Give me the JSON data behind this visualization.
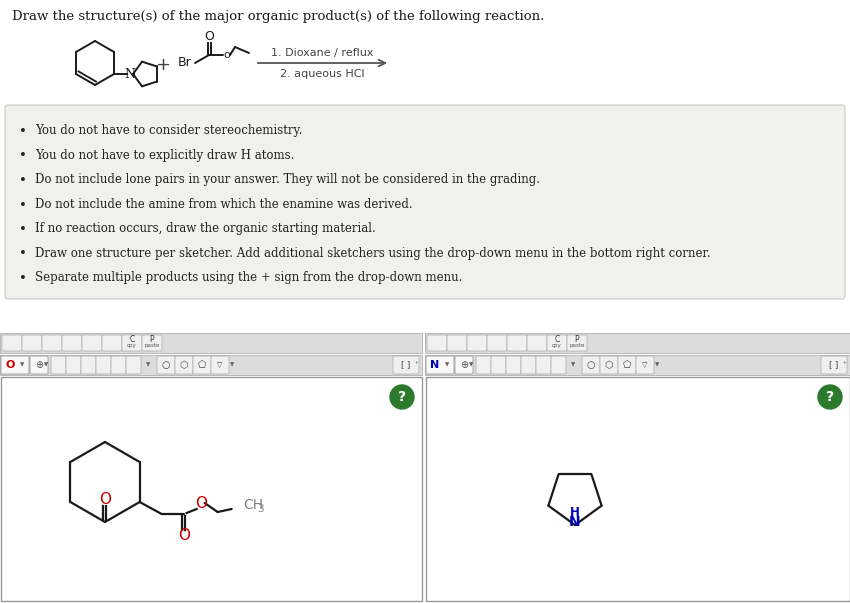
{
  "title": "Draw the structure(s) of the major organic product(s) of the following reaction.",
  "bg_color": "#ffffff",
  "panel_bg": "#f0f0ec",
  "bullet_points": [
    "You do not have to consider stereochemistry.",
    "You do not have to explicitly draw H atoms.",
    "Do not include lone pairs in your answer. They will not be considered in the grading.",
    "Do not include the amine from which the enamine was derived.",
    "If no reaction occurs, draw the organic starting material.",
    "Draw one structure per sketcher. Add additional sketchers using the drop-down menu in the bottom right corner.",
    "Separate multiple products using the + sign from the drop-down menu."
  ],
  "conditions_line1": "1. Dioxane / reflux",
  "conditions_line2": "2. aqueous HCl",
  "sketcher_bg": "#ffffff",
  "question_mark_color": "#2d7a2d",
  "oxygen_color": "#cc0000",
  "nitrogen_color": "#0000bb",
  "bond_color": "#1a1a1a",
  "text_color": "#222222",
  "toolbar_bg": "#e8e8e8",
  "toolbar_border": "#b0b0b0"
}
